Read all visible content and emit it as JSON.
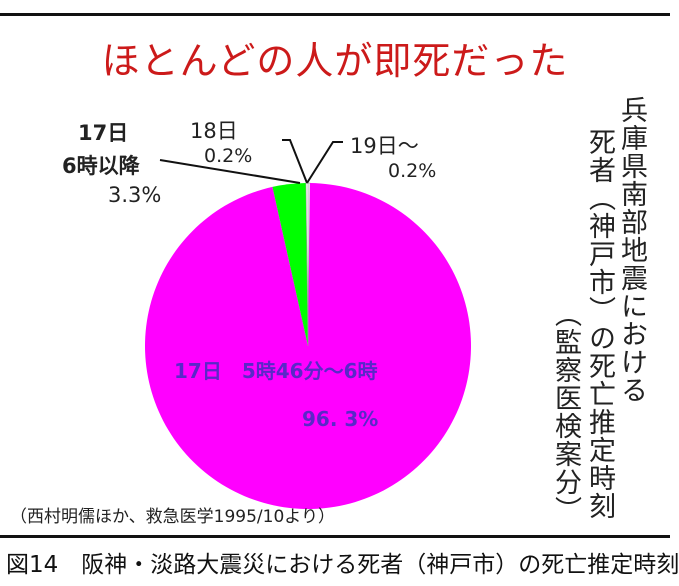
{
  "chart_data": {
    "type": "pie",
    "title": "ほとんどの人が即死だった",
    "slices": [
      {
        "label_lines": [
          "19日〜",
          "0.2%"
        ],
        "value": 0.2,
        "color": "#ffffff"
      },
      {
        "label_lines": [
          "17日　5時46分〜6時",
          "96. 3%"
        ],
        "value": 96.3,
        "color": "#ff00ff",
        "text_color": "#5a28c8"
      },
      {
        "label_lines": [
          "17日",
          "6時以降",
          "3.3%"
        ],
        "value": 3.3,
        "color": "#00ff00"
      },
      {
        "label_lines": [
          "18日",
          "0.2%"
        ],
        "value": 0.2,
        "color": "#ffffff"
      }
    ],
    "start": "12 o'clock, clockwise",
    "side_title": [
      "兵庫県南部地震における",
      "死者（神戸市）の死亡推定時刻",
      "（監察医検案分）"
    ],
    "source": "（西村明儒ほか、救急医学1995/10より）"
  },
  "caption": "図14　阪神・淡路大震災における死者（神戸市）の死亡推定時刻"
}
